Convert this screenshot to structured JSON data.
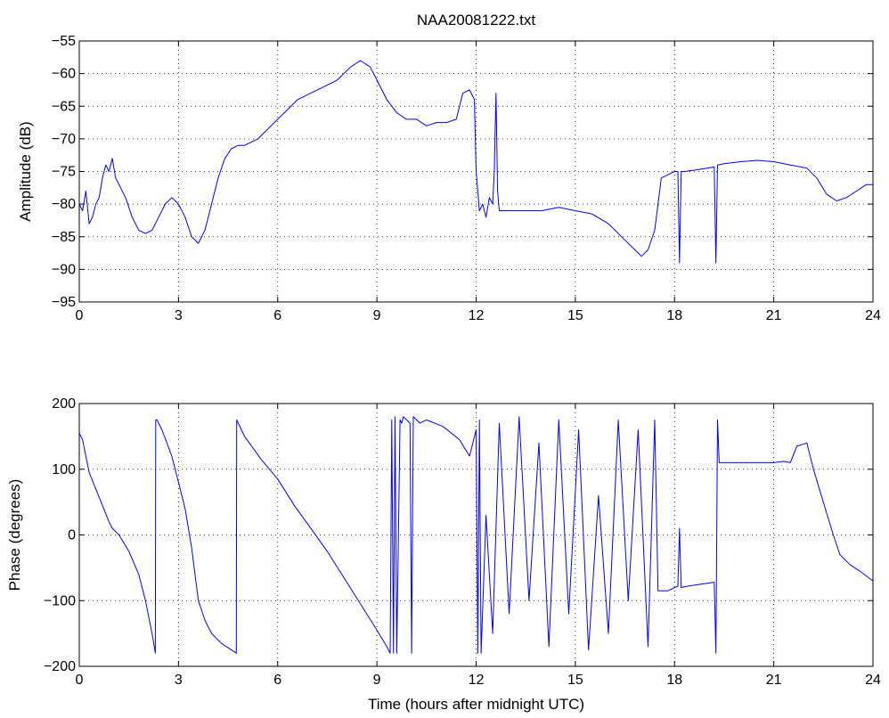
{
  "chart_data": [
    {
      "type": "line",
      "title": "NAA20081222.txt",
      "xlabel": "",
      "ylabel": "Amplitude (dB)",
      "xlim": [
        0,
        24
      ],
      "ylim": [
        -95,
        -55
      ],
      "xticks": [
        0,
        3,
        6,
        9,
        12,
        15,
        18,
        21,
        24
      ],
      "yticks": [
        -95,
        -90,
        -85,
        -80,
        -75,
        -70,
        -65,
        -60,
        -55
      ],
      "xtick_labels": [
        "0",
        "3",
        "6",
        "9",
        "12",
        "15",
        "18",
        "21",
        "24"
      ],
      "ytick_labels": [
        "−95",
        "−90",
        "−85",
        "−80",
        "−75",
        "−70",
        "−65",
        "−60",
        "−55"
      ],
      "grid": true,
      "color": "#0000ff",
      "series": [
        {
          "x": [
            0,
            0.1,
            0.2,
            0.3,
            0.4,
            0.5,
            0.6,
            0.7,
            0.8,
            0.9,
            1.0,
            1.1,
            1.2,
            1.4,
            1.6,
            1.8,
            2.0,
            2.2,
            2.4,
            2.6,
            2.8,
            3.0,
            3.2,
            3.4,
            3.6,
            3.8,
            4.0,
            4.2,
            4.4,
            4.6,
            4.8,
            5.0,
            5.4,
            5.8,
            6.2,
            6.6,
            7.0,
            7.4,
            7.8,
            8.2,
            8.5,
            8.8,
            9.0,
            9.3,
            9.6,
            9.9,
            10.2,
            10.5,
            10.8,
            11.1,
            11.4,
            11.6,
            11.8,
            11.95,
            12.0,
            12.05,
            12.1,
            12.2,
            12.3,
            12.4,
            12.5,
            12.55,
            12.6,
            12.65,
            12.7,
            13.0,
            13.5,
            14.0,
            14.5,
            15.0,
            15.5,
            16.0,
            16.4,
            16.8,
            17.0,
            17.2,
            17.4,
            17.6,
            17.8,
            18.0,
            18.1,
            18.15,
            18.2,
            18.3,
            18.6,
            19.0,
            19.2,
            19.25,
            19.3,
            19.5,
            20.0,
            20.5,
            21.0,
            21.5,
            22.0,
            22.3,
            22.6,
            22.9,
            23.2,
            23.5,
            23.8,
            24.0
          ],
          "y": [
            -80,
            -81,
            -78,
            -83,
            -82,
            -80,
            -79,
            -76,
            -74,
            -75,
            -73,
            -76,
            -77,
            -79,
            -82,
            -84,
            -84.5,
            -84,
            -82,
            -80,
            -79,
            -80,
            -82,
            -85,
            -86,
            -84,
            -80,
            -76,
            -73,
            -71.5,
            -71,
            -71,
            -70,
            -68,
            -66,
            -64,
            -63,
            -62,
            -61,
            -59,
            -58,
            -59,
            -61,
            -64,
            -66,
            -67,
            -67,
            -68,
            -67.5,
            -67.5,
            -67,
            -63,
            -62.5,
            -64,
            -75,
            -78,
            -81,
            -80,
            -82,
            -79,
            -80,
            -75,
            -63,
            -78,
            -81,
            -81,
            -81,
            -81,
            -80.5,
            -81,
            -81.5,
            -83,
            -85,
            -87,
            -88,
            -87,
            -84,
            -76,
            -75.5,
            -75,
            -75,
            -89,
            -75,
            -75,
            -74.8,
            -74.5,
            -74.3,
            -89,
            -74,
            -73.8,
            -73.5,
            -73.3,
            -73.5,
            -74,
            -74.5,
            -76,
            -78.5,
            -79.5,
            -79,
            -78,
            -77,
            -77
          ]
        }
      ]
    },
    {
      "type": "line",
      "title": "",
      "xlabel": "Time (hours after midnight UTC)",
      "ylabel": "Phase (degrees)",
      "xlim": [
        0,
        24
      ],
      "ylim": [
        -200,
        200
      ],
      "xticks": [
        0,
        3,
        6,
        9,
        12,
        15,
        18,
        21,
        24
      ],
      "yticks": [
        -200,
        -100,
        0,
        100,
        200
      ],
      "xtick_labels": [
        "0",
        "3",
        "6",
        "9",
        "12",
        "15",
        "18",
        "21",
        "24"
      ],
      "ytick_labels": [
        "−200",
        "−100",
        "0",
        "100",
        "200"
      ],
      "grid": true,
      "color": "#0000ff",
      "series": [
        {
          "x": [
            0,
            0.1,
            0.2,
            0.3,
            0.5,
            0.7,
            0.9,
            1.0,
            1.2,
            1.5,
            1.8,
            2.0,
            2.2,
            2.3,
            2.31,
            2.35,
            2.5,
            2.8,
            3.0,
            3.2,
            3.4,
            3.5,
            3.6,
            3.8,
            4.0,
            4.3,
            4.6,
            4.75,
            4.76,
            5.0,
            5.5,
            6.0,
            6.5,
            7.0,
            7.5,
            8.0,
            8.5,
            9.0,
            9.3,
            9.4,
            9.45,
            9.5,
            9.55,
            9.6,
            9.7,
            9.75,
            9.8,
            9.9,
            10.0,
            10.05,
            10.1,
            10.2,
            10.3,
            10.5,
            11.0,
            11.5,
            11.8,
            12.0,
            12.05,
            12.1,
            12.15,
            12.3,
            12.5,
            12.7,
            13.0,
            13.3,
            13.6,
            13.9,
            14.2,
            14.5,
            14.8,
            15.1,
            15.4,
            15.7,
            16.0,
            16.3,
            16.6,
            16.9,
            17.2,
            17.4,
            17.5,
            17.8,
            18.0,
            18.1,
            18.15,
            18.2,
            18.4,
            18.8,
            19.2,
            19.25,
            19.3,
            19.35,
            19.5,
            20.0,
            20.5,
            21.0,
            21.3,
            21.5,
            21.7,
            22.0,
            22.2,
            22.5,
            22.8,
            23.0,
            23.3,
            23.6,
            24.0
          ],
          "y": [
            155,
            145,
            120,
            95,
            70,
            45,
            20,
            10,
            0,
            -25,
            -60,
            -100,
            -150,
            -180,
            175,
            175,
            160,
            120,
            80,
            40,
            -20,
            -60,
            -100,
            -130,
            -150,
            -165,
            -175,
            -180,
            175,
            150,
            115,
            85,
            45,
            10,
            -25,
            -65,
            -105,
            -145,
            -170,
            -180,
            175,
            -180,
            180,
            -180,
            175,
            170,
            180,
            175,
            170,
            -180,
            180,
            175,
            170,
            175,
            165,
            145,
            120,
            160,
            -180,
            175,
            -180,
            30,
            -150,
            170,
            -120,
            180,
            -100,
            140,
            -170,
            175,
            -120,
            160,
            -175,
            60,
            -150,
            175,
            -100,
            160,
            -170,
            175,
            -85,
            -85,
            -80,
            -78,
            10,
            -80,
            -78,
            -75,
            -72,
            -180,
            175,
            110,
            110,
            110,
            110,
            110,
            112,
            110,
            135,
            140,
            100,
            50,
            0,
            -30,
            -45,
            -55,
            -70
          ]
        }
      ]
    }
  ]
}
